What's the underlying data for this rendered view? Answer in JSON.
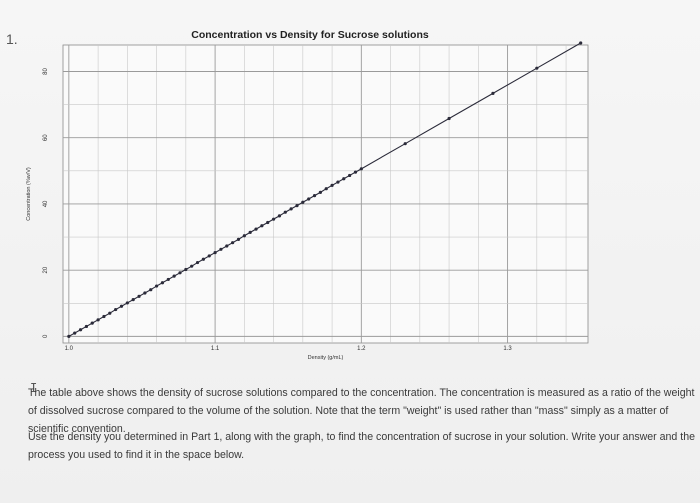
{
  "question_number": "1.",
  "chart_data": {
    "type": "line",
    "title": "Concentration vs Density for Sucrose solutions",
    "xlabel": "Density (g/mL)",
    "ylabel": "Concentration (%w/V)",
    "x_ticks": [
      "1.0",
      "1.1",
      "1.2",
      "1.3"
    ],
    "y_ticks": [
      "0",
      "20",
      "40",
      "60",
      "80"
    ],
    "xlim": [
      0.996,
      1.355
    ],
    "ylim": [
      -2,
      88
    ],
    "grid": true,
    "series": [
      {
        "color": "#2b2b3a",
        "x": [
          1.0,
          1.004,
          1.008,
          1.012,
          1.016,
          1.02,
          1.024,
          1.028,
          1.032,
          1.036,
          1.04,
          1.044,
          1.048,
          1.052,
          1.056,
          1.06,
          1.064,
          1.068,
          1.072,
          1.076,
          1.08,
          1.084,
          1.088,
          1.092,
          1.096,
          1.1,
          1.104,
          1.108,
          1.112,
          1.116,
          1.12,
          1.124,
          1.128,
          1.132,
          1.136,
          1.14,
          1.144,
          1.148,
          1.152,
          1.156,
          1.16,
          1.164,
          1.168,
          1.172,
          1.176,
          1.18,
          1.184,
          1.188,
          1.192,
          1.196,
          1.2,
          1.23,
          1.26,
          1.29,
          1.32,
          1.35
        ],
        "y": [
          0.0,
          1.0,
          2.0,
          3.0,
          4.0,
          5.0,
          6.0,
          7.0,
          8.1,
          9.1,
          10.1,
          11.1,
          12.1,
          13.1,
          14.1,
          15.2,
          16.2,
          17.2,
          18.2,
          19.2,
          20.2,
          21.2,
          22.3,
          23.3,
          24.3,
          25.3,
          26.3,
          27.3,
          28.3,
          29.3,
          30.4,
          31.4,
          32.4,
          33.4,
          34.4,
          35.4,
          36.4,
          37.5,
          38.5,
          39.5,
          40.5,
          41.5,
          42.5,
          43.5,
          44.6,
          45.6,
          46.6,
          47.6,
          48.6,
          49.6,
          50.6,
          58.2,
          65.8,
          73.4,
          81.0,
          88.6
        ]
      }
    ]
  },
  "caption": "The table above shows the density of sucrose solutions compared to the concentration. The concentration is measured as a ratio of the weight of dissolved sucrose compared to the volume of the solution. Note that the term \"weight\" is used rather than \"mass\" simply as a matter of scientific convention.",
  "prompt": "Use the density you determined in Part 1, along with the graph, to find the concentration of sucrose in your solution. Write your answer and the process you used to find it in the space below.",
  "colors": {
    "grid": "#c8c8c8",
    "major_grid": "#9a9a9a",
    "line": "#2b2b3a",
    "background": "#f3f3f3"
  }
}
